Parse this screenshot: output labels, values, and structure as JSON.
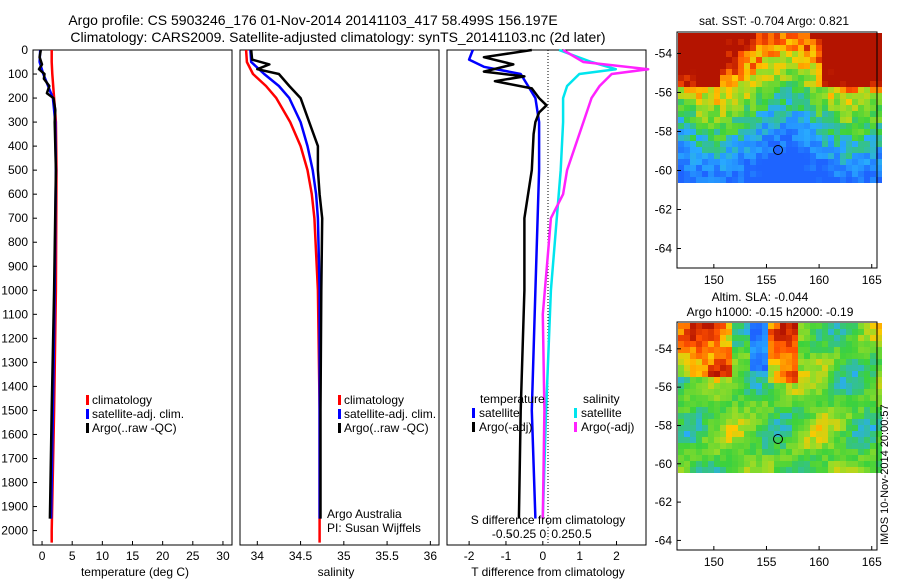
{
  "header": {
    "line1": "Argo profile: CS 5903246_176 01-Nov-2014 20141103_417 58.499S 156.197E",
    "line2": "Climatology: CARS2009. Satellite-adjusted climatology: synTS_20141103.nc (2d later)"
  },
  "colors": {
    "climatology": "#ff0000",
    "satellite": "#0000ff",
    "argo": "#000000",
    "sat_salinity": "#00e5ee",
    "argo_salinity": "#ff22ff"
  },
  "chart_data": [
    {
      "type": "line",
      "xlabel": "temperature (deg C)",
      "ylim": [
        2060,
        0
      ],
      "xlim": [
        -1.5,
        31.5
      ],
      "xticks": [
        0,
        5,
        10,
        15,
        20,
        25,
        30
      ],
      "yticks": [
        0,
        100,
        200,
        300,
        400,
        500,
        600,
        700,
        800,
        900,
        1000,
        1100,
        1200,
        1300,
        1400,
        1500,
        1600,
        1700,
        1800,
        1900,
        2000
      ],
      "legend": [
        "climatology",
        "satellite-adj. clim.",
        "Argo(..raw -QC)"
      ],
      "series": [
        {
          "name": "climatology",
          "depth": [
            0,
            50,
            100,
            200,
            300,
            500,
            1000,
            1500,
            2000,
            2050
          ],
          "values": [
            1.6,
            1.6,
            1.7,
            2.0,
            2.3,
            2.4,
            2.3,
            2.0,
            1.6,
            1.6
          ]
        },
        {
          "name": "satellite-adj. clim.",
          "depth": [
            0,
            50,
            100,
            150,
            200,
            300,
            500,
            1000,
            1500,
            1950
          ],
          "values": [
            -0.3,
            -0.4,
            0.2,
            1.0,
            1.8,
            2.2,
            2.3,
            2.1,
            1.8,
            1.5
          ]
        },
        {
          "name": "Argo(..raw -QC)",
          "depth": [
            0,
            30,
            60,
            80,
            100,
            120,
            150,
            180,
            200,
            250,
            300,
            500,
            1000,
            1500,
            1950
          ],
          "values": [
            -0.2,
            -0.4,
            0.0,
            -0.5,
            0.4,
            0.3,
            1.2,
            0.8,
            1.9,
            2.2,
            2.1,
            2.3,
            2.0,
            1.6,
            1.3
          ]
        }
      ]
    },
    {
      "type": "line",
      "xlabel": "salinity",
      "ylim": [
        2060,
        0
      ],
      "xlim": [
        33.8,
        36.1
      ],
      "xticks": [
        34,
        34.5,
        35,
        35.5,
        36
      ],
      "legend": [
        "climatology",
        "satellite-adj. clim.",
        "Argo(..raw -QC)"
      ],
      "series": [
        {
          "name": "climatology",
          "depth": [
            0,
            50,
            100,
            150,
            200,
            300,
            400,
            500,
            600,
            700,
            1000,
            1500,
            2050
          ],
          "values": [
            33.87,
            33.88,
            33.95,
            34.1,
            34.22,
            34.38,
            34.5,
            34.58,
            34.63,
            34.66,
            34.7,
            34.72,
            34.72
          ]
        },
        {
          "name": "satellite-adj. clim.",
          "depth": [
            0,
            50,
            80,
            100,
            150,
            200,
            300,
            400,
            500,
            600,
            700,
            1000,
            1500,
            1950
          ],
          "values": [
            33.92,
            33.93,
            34.02,
            34.08,
            34.25,
            34.37,
            34.5,
            34.58,
            34.64,
            34.68,
            34.7,
            34.72,
            34.72,
            34.72
          ]
        },
        {
          "name": "Argo(..raw -QC)",
          "depth": [
            0,
            40,
            60,
            80,
            100,
            150,
            200,
            300,
            400,
            500,
            600,
            700,
            1000,
            1500,
            1950
          ],
          "values": [
            33.93,
            33.94,
            34.14,
            34.0,
            34.25,
            34.37,
            34.5,
            34.6,
            34.7,
            34.7,
            34.72,
            34.75,
            34.74,
            34.73,
            34.73
          ]
        }
      ],
      "annotations": [
        "Argo Australia",
        "PI: Susan Wijffels"
      ]
    },
    {
      "type": "line",
      "xlabel": "T difference from climatology",
      "top_label": "S difference from climatology",
      "ylim": [
        2060,
        0
      ],
      "xlim_T": [
        -2.6,
        2.8
      ],
      "xticks_T": [
        -2,
        -1,
        0,
        1,
        2
      ],
      "xticks_S": [
        "-0.5",
        "-0.25",
        "0",
        "0.25",
        "0.5"
      ],
      "xticks_S_values": [
        -0.5,
        -0.25,
        0,
        0.25,
        0.5
      ],
      "legend_temperature_title": "temperature",
      "legend_salinity_title": "salinity",
      "legend": [
        "satellite",
        "Argo(-adj)",
        "satellite",
        "Argo(-adj)"
      ],
      "series": [
        {
          "name": "satellite",
          "depth": [
            0,
            40,
            70,
            100,
            150,
            200,
            300,
            500,
            1000,
            1500,
            1950
          ],
          "values": [
            -1.9,
            -2.0,
            -1.6,
            -0.6,
            -0.4,
            -0.2,
            -0.1,
            -0.1,
            -0.2,
            -0.3,
            -0.2
          ]
        },
        {
          "name": "Argo(-adj)",
          "depth": [
            0,
            30,
            60,
            90,
            110,
            130,
            160,
            200,
            230,
            260,
            300,
            350,
            500,
            700,
            1000,
            1500,
            1950
          ],
          "values": [
            -0.3,
            -1.6,
            -0.8,
            -1.6,
            -0.5,
            -1.3,
            -0.3,
            -0.1,
            0.1,
            -0.1,
            -0.2,
            -0.25,
            -0.3,
            -0.5,
            -0.5,
            -0.6,
            -0.65
          ]
        },
        {
          "name": "sat_salinity",
          "depth": [
            0,
            50,
            80,
            100,
            150,
            200,
            300,
            500,
            1000,
            1500,
            1950
          ],
          "values": [
            0.2,
            0.6,
            0.9,
            0.45,
            0.3,
            0.25,
            0.25,
            0.22,
            0.1,
            0.04,
            0.0
          ]
        },
        {
          "name": "argo_salinity",
          "depth": [
            0,
            50,
            80,
            100,
            150,
            200,
            300,
            500,
            600,
            700,
            900,
            1100,
            1500,
            1950
          ],
          "values": [
            0.25,
            0.5,
            1.3,
            0.85,
            0.7,
            0.6,
            0.5,
            0.3,
            0.25,
            0.1,
            0.05,
            0.0,
            0.02,
            0.0
          ]
        }
      ]
    }
  ],
  "maps": [
    {
      "title": "sat. SST: -0.704 Argo: 0.821",
      "xticks": [
        150,
        155,
        160,
        165
      ],
      "yticks": [
        -54,
        -56,
        -58,
        -60,
        -62,
        -64
      ]
    },
    {
      "title1": "Altim. SLA: -0.044",
      "title2": "Argo h1000: -0.15 h2000: -0.19",
      "xticks": [
        150,
        155,
        160,
        165
      ],
      "yticks": [
        -54,
        -56,
        -58,
        -60,
        -62,
        -64
      ]
    }
  ],
  "footer": {
    "stamp": "IMOS 10-Nov-2014 20:00:57"
  }
}
